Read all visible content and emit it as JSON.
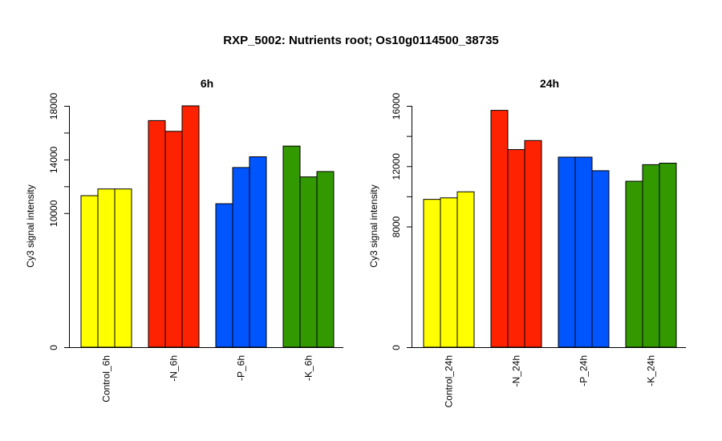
{
  "title": "RXP_5002: Nutrients root; Os10g0114500_38735",
  "chart_data": [
    {
      "type": "bar",
      "title": "6h",
      "ylabel": "Cy3 signal intensity",
      "ylim": [
        0,
        18000
      ],
      "yticks": [
        0,
        10000,
        14000,
        18000
      ],
      "y_minor_ticks": [
        12000,
        16000
      ],
      "categories": [
        "Control_6h",
        "-N_6h",
        "-P_6h",
        "-K_6h"
      ],
      "group_colors": [
        "#ffff00",
        "#ff2200",
        "#0055ff",
        "#339900"
      ],
      "values": [
        [
          11300,
          11800,
          11800
        ],
        [
          16900,
          16100,
          18000
        ],
        [
          10700,
          13400,
          14200
        ],
        [
          15000,
          12700,
          13100
        ]
      ]
    },
    {
      "type": "bar",
      "title": "24h",
      "ylabel": "Cy3 signal intensity",
      "ylim": [
        0,
        16000
      ],
      "yticks": [
        0,
        8000,
        12000,
        16000
      ],
      "y_minor_ticks": [
        10000,
        14000
      ],
      "categories": [
        "Control_24h",
        "-N_24h",
        "-P_24h",
        "-K_24h"
      ],
      "group_colors": [
        "#ffff00",
        "#ff2200",
        "#0055ff",
        "#339900"
      ],
      "values": [
        [
          9800,
          9900,
          10300
        ],
        [
          15700,
          13100,
          13700
        ],
        [
          12600,
          12600,
          11700
        ],
        [
          11000,
          12100,
          12200
        ]
      ]
    }
  ]
}
